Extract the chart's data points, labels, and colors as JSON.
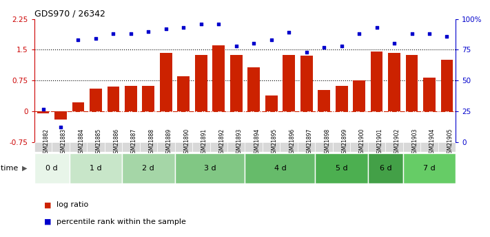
{
  "title": "GDS970 / 26342",
  "samples": [
    "GSM21882",
    "GSM21883",
    "GSM21884",
    "GSM21885",
    "GSM21886",
    "GSM21887",
    "GSM21888",
    "GSM21889",
    "GSM21890",
    "GSM21891",
    "GSM21892",
    "GSM21893",
    "GSM21894",
    "GSM21895",
    "GSM21896",
    "GSM21897",
    "GSM21898",
    "GSM21899",
    "GSM21900",
    "GSM21901",
    "GSM21902",
    "GSM21903",
    "GSM21904",
    "GSM21905"
  ],
  "log_ratio": [
    -0.05,
    -0.2,
    0.22,
    0.55,
    0.6,
    0.62,
    0.62,
    1.42,
    0.85,
    1.38,
    1.6,
    1.38,
    1.08,
    0.38,
    1.38,
    1.35,
    0.52,
    0.62,
    0.75,
    1.45,
    1.42,
    1.38,
    0.82,
    1.25
  ],
  "percentile": [
    27,
    12,
    83,
    84,
    88,
    88,
    90,
    92,
    93,
    96,
    96,
    78,
    80,
    83,
    89,
    73,
    77,
    78,
    88,
    93,
    80,
    88,
    88,
    86
  ],
  "time_groups": [
    {
      "label": "0 d",
      "start": 0,
      "end": 2,
      "color": "#e8f5e9"
    },
    {
      "label": "1 d",
      "start": 2,
      "end": 5,
      "color": "#c8e6c9"
    },
    {
      "label": "2 d",
      "start": 5,
      "end": 8,
      "color": "#a5d6a7"
    },
    {
      "label": "3 d",
      "start": 8,
      "end": 12,
      "color": "#81c784"
    },
    {
      "label": "4 d",
      "start": 12,
      "end": 16,
      "color": "#66bb6a"
    },
    {
      "label": "5 d",
      "start": 16,
      "end": 19,
      "color": "#4caf50"
    },
    {
      "label": "6 d",
      "start": 19,
      "end": 21,
      "color": "#43a047"
    },
    {
      "label": "7 d",
      "start": 21,
      "end": 24,
      "color": "#66cc66"
    }
  ],
  "bar_color": "#cc2200",
  "scatter_color": "#0000cc",
  "ylim_left": [
    -0.75,
    2.25
  ],
  "ylim_right": [
    0,
    100
  ],
  "yticks_left": [
    -0.75,
    0,
    0.75,
    1.5,
    2.25
  ],
  "ytick_labels_left": [
    "-0.75",
    "0",
    "0.75",
    "1.5",
    "2.25"
  ],
  "yticks_right": [
    0,
    25,
    50,
    75,
    100
  ],
  "ytick_labels_right": [
    "0",
    "25",
    "50",
    "75",
    "100%"
  ],
  "hlines": [
    0.75,
    1.5
  ],
  "hline_zero": 0,
  "bar_width": 0.7,
  "label_color_left": "#cc0000",
  "label_color_right": "#0000cc",
  "xtick_bg": "#d8d8d8",
  "legend_items": [
    {
      "color": "#cc2200",
      "label": "log ratio"
    },
    {
      "color": "#0000cc",
      "label": "percentile rank within the sample"
    }
  ]
}
